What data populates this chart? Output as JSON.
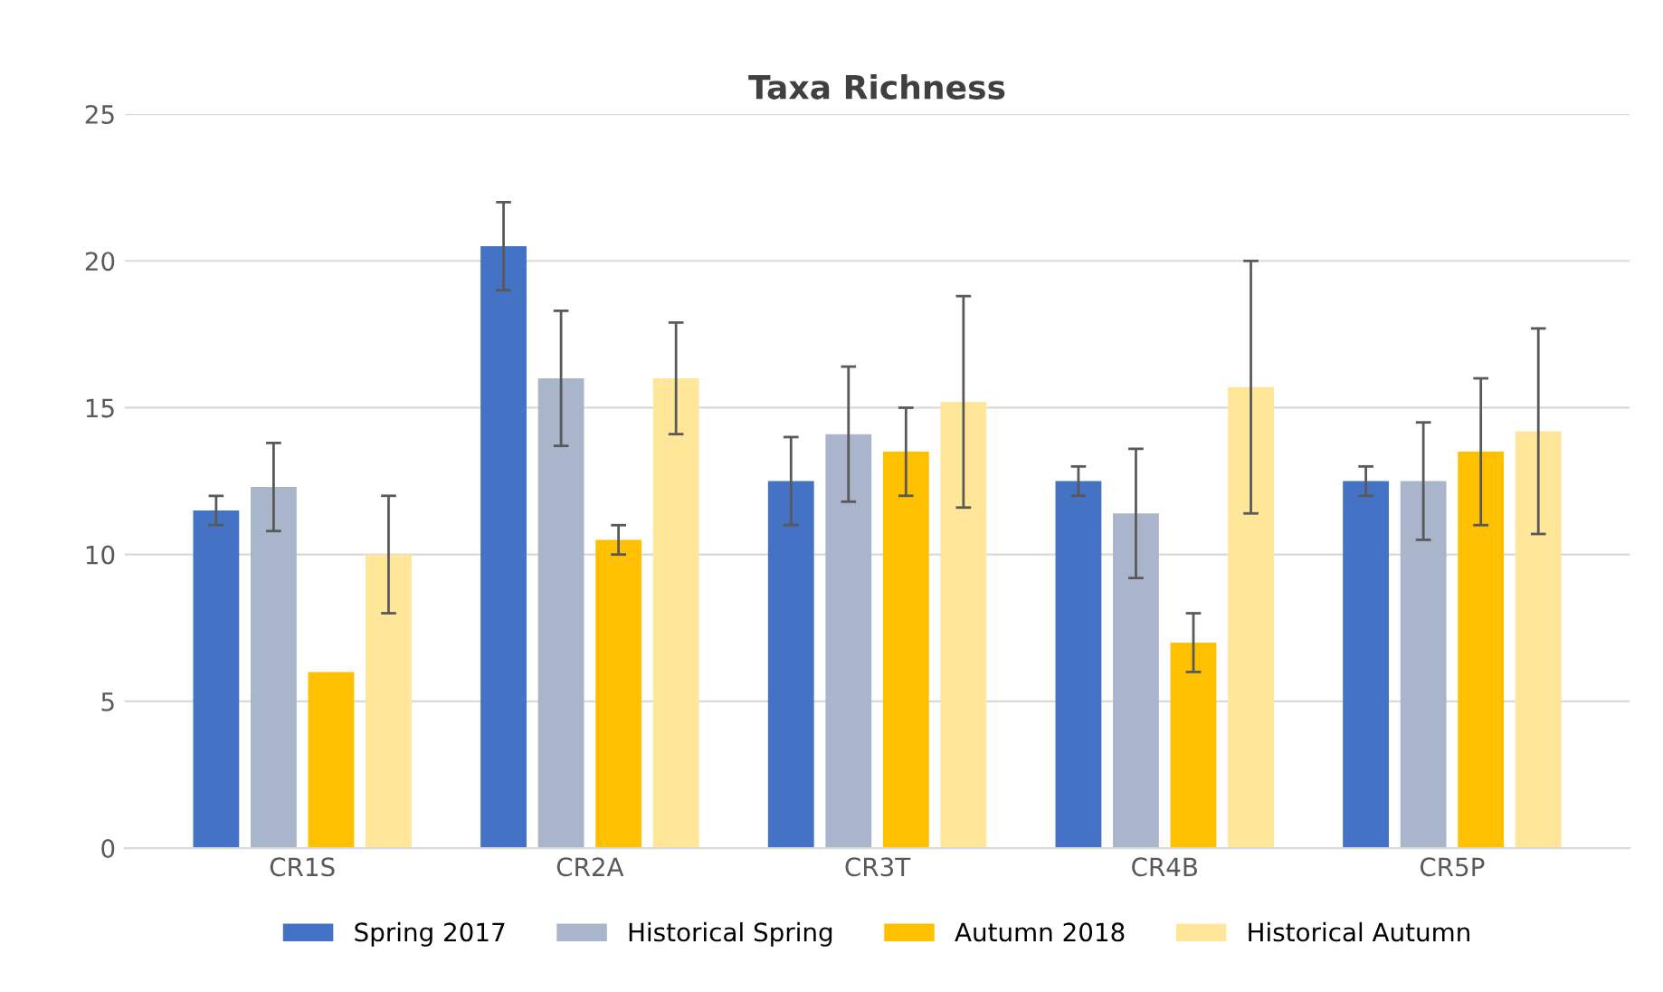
{
  "chart_data": {
    "type": "bar",
    "title": "Taxa Richness",
    "categories": [
      "CR1S",
      "CR2A",
      "CR3T",
      "CR4B",
      "CR5P"
    ],
    "series": [
      {
        "name": "Spring 2017",
        "color": "#4472c4",
        "values": [
          11.5,
          20.5,
          12.5,
          12.5,
          12.5
        ],
        "errors": [
          0.5,
          1.5,
          1.5,
          0.5,
          0.5
        ]
      },
      {
        "name": "Historical Spring",
        "color": "#a9b5cb",
        "values": [
          12.3,
          16,
          14.1,
          11.4,
          12.5
        ],
        "errors": [
          1.5,
          2.3,
          2.3,
          2.2,
          2
        ]
      },
      {
        "name": "Autumn 2018",
        "color": "#ffc000",
        "values": [
          6,
          10.5,
          13.5,
          7,
          13.5
        ],
        "errors": [
          null,
          0.5,
          1.5,
          1,
          2.5
        ]
      },
      {
        "name": "Historical Autumn",
        "color": "#ffe699",
        "values": [
          10,
          16,
          15.2,
          15.7,
          14.2
        ],
        "errors": [
          2,
          1.9,
          3.6,
          4.3,
          3.5
        ]
      }
    ],
    "ylim": [
      0,
      25
    ],
    "yticks": [
      0,
      5,
      10,
      15,
      20,
      25
    ],
    "grid": "y",
    "legend": "bottom"
  }
}
